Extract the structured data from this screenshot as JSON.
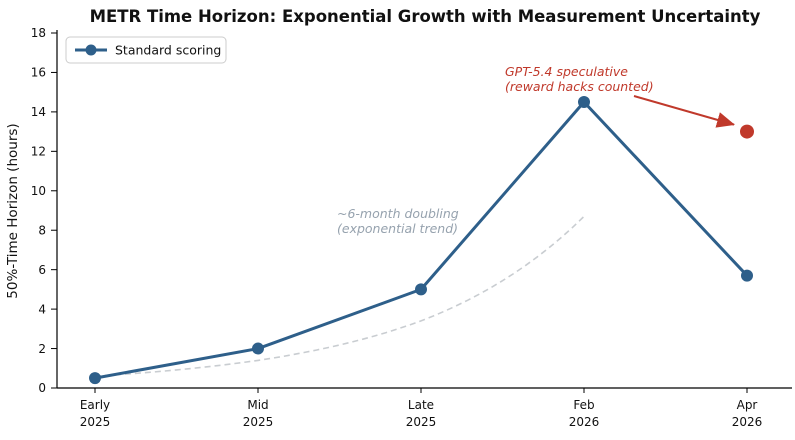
{
  "title": "METR Time Horizon: Exponential Growth with Measurement Uncertainty",
  "legend": {
    "items": [
      {
        "label": "Standard scoring",
        "color": "#2e5f8a"
      }
    ]
  },
  "colors": {
    "standard": "#2e5f8a",
    "speculative": "#c0392b",
    "trend_line": "#c9cdd1",
    "trend_text": "#96a2ae",
    "axis": "#000000"
  },
  "annotations": {
    "trend": {
      "lines": [
        "~6-month doubling",
        "(exponential trend)"
      ]
    },
    "speculative": {
      "lines": [
        "GPT-5.4 speculative",
        "(reward hacks counted)"
      ]
    }
  },
  "chart_data": {
    "type": "line",
    "title": "METR Time Horizon: Exponential Growth with Measurement Uncertainty",
    "xlabel": "",
    "ylabel": "50%-Time Horizon (hours)",
    "ylim": [
      0,
      18
    ],
    "ytick_step": 2,
    "grid": false,
    "legend_position": "upper left",
    "categories": [
      "Early\n2025",
      "Mid\n2025",
      "Late\n2025",
      "Feb\n2026",
      "Apr\n2026"
    ],
    "series": [
      {
        "name": "Standard scoring",
        "style": "solid-line-with-markers",
        "color": "#2e5f8a",
        "values": [
          0.5,
          2.0,
          5.0,
          14.5,
          5.7
        ]
      },
      {
        "name": "~6-month doubling (exponential trend)",
        "style": "dashed-exponential-trend",
        "color": "#c9cdd1",
        "values": [
          0.6,
          1.4,
          3.4,
          8.7,
          null
        ]
      },
      {
        "name": "GPT-5.4 speculative (reward hacks counted)",
        "style": "single-point",
        "color": "#c0392b",
        "values": [
          null,
          null,
          null,
          null,
          13.0
        ]
      }
    ]
  }
}
